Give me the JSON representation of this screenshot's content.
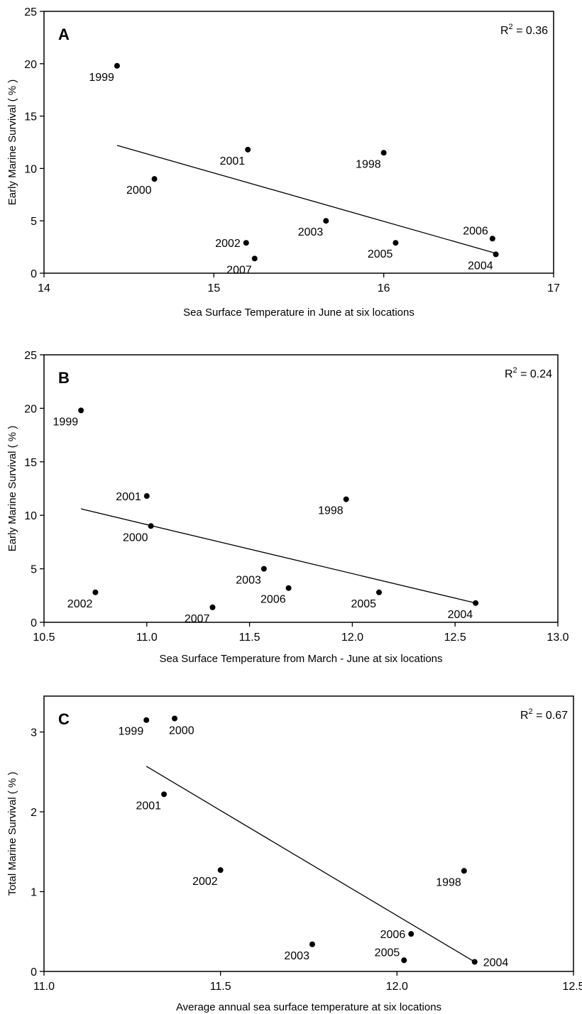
{
  "chart_data": [
    {
      "type": "scatter",
      "panel_label": "A",
      "r2_label": "R",
      "r2_exp": "2",
      "r2_value": " = 0.36",
      "xlabel": "Sea Surface Temperature in June at six locations",
      "ylabel": "Early Marine Survival ( % )",
      "xlim": [
        14,
        17
      ],
      "ylim": [
        0,
        25
      ],
      "xticks": [
        14,
        15,
        16,
        17
      ],
      "xtick_labels": [
        "14",
        "15",
        "16",
        "17"
      ],
      "yticks": [
        0,
        5,
        10,
        15,
        20,
        25
      ],
      "ytick_labels": [
        "0",
        "5",
        "10",
        "15",
        "20",
        "25"
      ],
      "points": [
        {
          "label": "1999",
          "x": 14.43,
          "y": 19.8,
          "lpos": "bl"
        },
        {
          "label": "2000",
          "x": 14.65,
          "y": 9.0,
          "lpos": "bl"
        },
        {
          "label": "2001",
          "x": 15.2,
          "y": 11.8,
          "lpos": "bl"
        },
        {
          "label": "1998",
          "x": 16.0,
          "y": 11.5,
          "lpos": "bl"
        },
        {
          "label": "2003",
          "x": 15.66,
          "y": 5.0,
          "lpos": "bl"
        },
        {
          "label": "2002",
          "x": 15.19,
          "y": 2.9,
          "lpos": "l"
        },
        {
          "label": "2007",
          "x": 15.24,
          "y": 1.4,
          "lpos": "bl"
        },
        {
          "label": "2005",
          "x": 16.07,
          "y": 2.9,
          "lpos": "bl"
        },
        {
          "label": "2006",
          "x": 16.64,
          "y": 3.3,
          "lpos": "tl"
        },
        {
          "label": "2004",
          "x": 16.66,
          "y": 1.8,
          "lpos": "bl"
        }
      ],
      "trendline": {
        "x": [
          14.43,
          16.66
        ],
        "y": [
          12.2,
          1.9
        ]
      }
    },
    {
      "type": "scatter",
      "panel_label": "B",
      "r2_label": "R",
      "r2_exp": "2",
      "r2_value": " = 0.24",
      "xlabel": "Sea Surface Temperature from March - June at six locations",
      "ylabel": "Early Marine Survival ( % )",
      "xlim": [
        10.5,
        13.0
      ],
      "ylim": [
        0,
        25
      ],
      "xticks": [
        10.5,
        11.0,
        11.5,
        12.0,
        12.5,
        13.0
      ],
      "xtick_labels": [
        "10.5",
        "11.0",
        "11.5",
        "12.0",
        "12.5",
        "13.0"
      ],
      "yticks": [
        0,
        5,
        10,
        15,
        20,
        25
      ],
      "ytick_labels": [
        "0",
        "5",
        "10",
        "15",
        "20",
        "25"
      ],
      "points": [
        {
          "label": "1999",
          "x": 10.68,
          "y": 19.8,
          "lpos": "bl"
        },
        {
          "label": "2001",
          "x": 11.0,
          "y": 11.8,
          "lpos": "l"
        },
        {
          "label": "2000",
          "x": 11.02,
          "y": 9.0,
          "lpos": "bl"
        },
        {
          "label": "1998",
          "x": 11.97,
          "y": 11.5,
          "lpos": "bl"
        },
        {
          "label": "2003",
          "x": 11.57,
          "y": 5.0,
          "lpos": "bl"
        },
        {
          "label": "2006",
          "x": 11.69,
          "y": 3.2,
          "lpos": "bl"
        },
        {
          "label": "2002",
          "x": 10.75,
          "y": 2.8,
          "lpos": "bl"
        },
        {
          "label": "2007",
          "x": 11.32,
          "y": 1.4,
          "lpos": "bl"
        },
        {
          "label": "2005",
          "x": 12.13,
          "y": 2.8,
          "lpos": "bl"
        },
        {
          "label": "2004",
          "x": 12.6,
          "y": 1.8,
          "lpos": "bl"
        }
      ],
      "trendline": {
        "x": [
          10.68,
          12.6
        ],
        "y": [
          10.6,
          1.8
        ]
      }
    },
    {
      "type": "scatter",
      "panel_label": "C",
      "r2_label": "R",
      "r2_exp": "2",
      "r2_value": " = 0.67",
      "xlabel": "Average annual sea surface temperature at six locations",
      "ylabel": "Total Marine Survival ( % )",
      "xlim": [
        11.0,
        12.5
      ],
      "ylim": [
        0,
        3.45
      ],
      "xticks": [
        11.0,
        11.5,
        12.0,
        12.5
      ],
      "xtick_labels": [
        "11.0",
        "11.5",
        "12.0",
        "12.5"
      ],
      "yticks": [
        0,
        1,
        2,
        3
      ],
      "ytick_labels": [
        "0",
        "1",
        "2",
        "3"
      ],
      "points": [
        {
          "label": "1999",
          "x": 11.29,
          "y": 3.15,
          "lpos": "bl"
        },
        {
          "label": "2000",
          "x": 11.37,
          "y": 3.17,
          "lpos": "b"
        },
        {
          "label": "2001",
          "x": 11.34,
          "y": 2.22,
          "lpos": "bl"
        },
        {
          "label": "2002",
          "x": 11.5,
          "y": 1.27,
          "lpos": "bl"
        },
        {
          "label": "1998",
          "x": 12.19,
          "y": 1.26,
          "lpos": "bl"
        },
        {
          "label": "2006",
          "x": 12.04,
          "y": 0.47,
          "lpos": "l"
        },
        {
          "label": "2003",
          "x": 11.76,
          "y": 0.34,
          "lpos": "bl"
        },
        {
          "label": "2005",
          "x": 12.02,
          "y": 0.14,
          "lpos": "tl"
        },
        {
          "label": "2004",
          "x": 12.22,
          "y": 0.12,
          "lpos": "r"
        }
      ],
      "trendline": {
        "x": [
          11.29,
          12.22
        ],
        "y": [
          2.57,
          0.12
        ]
      }
    }
  ]
}
